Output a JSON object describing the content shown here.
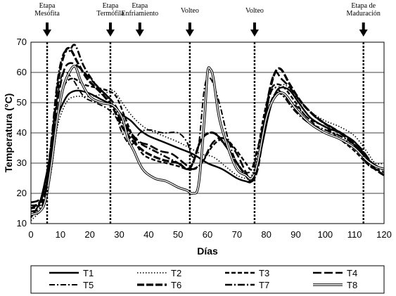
{
  "chart_data": {
    "type": "line",
    "xlabel": "Días",
    "ylabel": "Temperatura (°C)",
    "xlim": [
      0,
      120
    ],
    "ylim": [
      10,
      70
    ],
    "x_ticks": [
      0,
      10,
      20,
      30,
      40,
      50,
      60,
      70,
      80,
      90,
      100,
      110,
      120
    ],
    "y_ticks": [
      10,
      20,
      30,
      40,
      50,
      60,
      70
    ],
    "y_tick_labels": [
      "10",
      "20",
      "30",
      "40",
      "50",
      "60",
      "70"
    ],
    "gridlines": "horizontal",
    "legend_position": "bottom",
    "stage_markers": [
      {
        "x": 5.5,
        "lines": [
          "Etapa",
          "Mesófita"
        ],
        "arrow": true,
        "divider": true
      },
      {
        "x": 27,
        "lines": [
          "Etapa",
          "Termófila"
        ],
        "arrow": true,
        "divider": true
      },
      {
        "x": 37,
        "lines": [
          "Etapa",
          "Enfriamiento"
        ],
        "arrow": true,
        "divider": false
      },
      {
        "x": 54,
        "lines": [
          "Volteo"
        ],
        "arrow": true,
        "divider": true
      },
      {
        "x": 76,
        "lines": [
          "Volteo"
        ],
        "arrow": true,
        "divider": true
      },
      {
        "x": 113,
        "lines": [
          "Etapa de",
          "Maduración"
        ],
        "arrow": true,
        "divider": true
      }
    ],
    "series": [
      {
        "name": "T1",
        "style": "solid",
        "x": [
          0,
          3,
          5,
          7,
          9,
          11,
          13,
          16,
          20,
          24,
          28,
          31,
          34,
          37,
          40,
          45,
          50,
          55,
          60,
          65,
          70,
          73,
          75,
          77,
          79,
          81,
          83,
          85,
          88,
          91,
          95,
          100,
          105,
          110,
          114,
          117,
          120
        ],
        "y": [
          12,
          17,
          25,
          35,
          45,
          50,
          53,
          54,
          53,
          51,
          49,
          46,
          44,
          41,
          39,
          37,
          35,
          33,
          30,
          28,
          25,
          24,
          24,
          29,
          38,
          47,
          53,
          55,
          54,
          50,
          45,
          42,
          40,
          37,
          32,
          29,
          28
        ]
      },
      {
        "name": "T2",
        "style": "dotted",
        "x": [
          0,
          3,
          5,
          7,
          9,
          12,
          15,
          20,
          25,
          28,
          31,
          34,
          37,
          40,
          45,
          50,
          54,
          58,
          62,
          66,
          70,
          73,
          75,
          77,
          80,
          83,
          86,
          90,
          95,
          100,
          105,
          110,
          114,
          117,
          120
        ],
        "y": [
          11,
          14,
          18,
          28,
          42,
          50,
          52,
          52,
          53,
          54,
          50,
          46,
          43,
          41,
          39,
          37,
          35,
          33,
          32,
          29,
          26,
          25,
          26,
          32,
          44,
          53,
          56,
          52,
          47,
          44,
          42,
          39,
          34,
          30,
          30
        ]
      },
      {
        "name": "T3",
        "style": "dashed",
        "x": [
          0,
          3,
          5,
          7,
          9,
          11,
          14,
          18,
          22,
          26,
          29,
          32,
          35,
          38,
          42,
          46,
          50,
          53,
          55,
          58,
          62,
          66,
          70,
          73,
          75,
          77,
          79,
          81,
          83,
          86,
          90,
          94,
          100,
          105,
          110,
          114,
          117,
          120
        ],
        "y": [
          15,
          16,
          20,
          32,
          45,
          55,
          58,
          56,
          55,
          54,
          52,
          45,
          38,
          33,
          31,
          30,
          29,
          28,
          28,
          30,
          36,
          38,
          34,
          30,
          28,
          34,
          45,
          53,
          56,
          55,
          50,
          45,
          42,
          38,
          34,
          30,
          28,
          27
        ]
      },
      {
        "name": "T4",
        "style": "longdash",
        "x": [
          0,
          3,
          5,
          7,
          9,
          11,
          13,
          16,
          20,
          24,
          28,
          31,
          34,
          37,
          40,
          44,
          48,
          52,
          55,
          58,
          62,
          66,
          70,
          73,
          75,
          77,
          79,
          81,
          83,
          85,
          88,
          92,
          97,
          102,
          107,
          112,
          116,
          120
        ],
        "y": [
          17,
          18,
          22,
          35,
          50,
          60,
          63,
          62,
          58,
          54,
          50,
          45,
          40,
          37,
          36,
          34,
          33,
          30,
          28,
          30,
          37,
          38,
          33,
          27,
          24,
          30,
          42,
          54,
          60,
          58,
          55,
          50,
          45,
          42,
          39,
          35,
          30,
          28
        ]
      },
      {
        "name": "T5",
        "style": "dashdot",
        "x": [
          0,
          3,
          5,
          7,
          9,
          11,
          14,
          18,
          22,
          26,
          29,
          31,
          34,
          37,
          40,
          45,
          50,
          53,
          55,
          57,
          59,
          61,
          64,
          67,
          70,
          73,
          75,
          77,
          80,
          83,
          86,
          90,
          95,
          100,
          105,
          110,
          114,
          117,
          120
        ],
        "y": [
          16,
          17,
          23,
          38,
          52,
          60,
          58,
          52,
          50,
          48,
          45,
          40,
          36,
          40,
          41,
          40,
          40,
          37,
          32,
          36,
          55,
          58,
          50,
          38,
          30,
          27,
          28,
          35,
          46,
          53,
          52,
          49,
          44,
          40,
          38,
          36,
          30,
          28,
          28
        ]
      },
      {
        "name": "T6",
        "style": "heavydash",
        "x": [
          0,
          3,
          5,
          7,
          9,
          11,
          13,
          16,
          19,
          22,
          25,
          28,
          31,
          34,
          37,
          40,
          45,
          50,
          53,
          55,
          58,
          62,
          66,
          70,
          73,
          75,
          77,
          79,
          81,
          83,
          85,
          88,
          92,
          96,
          100,
          105,
          110,
          114,
          117,
          120
        ],
        "y": [
          15,
          17,
          20,
          35,
          55,
          65,
          68,
          63,
          58,
          55,
          52,
          48,
          42,
          38,
          35,
          33,
          31,
          30,
          28,
          30,
          38,
          40,
          36,
          30,
          26,
          24,
          28,
          40,
          53,
          60,
          61,
          56,
          50,
          46,
          43,
          40,
          36,
          31,
          28,
          26
        ]
      },
      {
        "name": "T7",
        "style": "dashdotbold",
        "x": [
          0,
          3,
          5,
          7,
          9,
          11,
          13,
          15,
          18,
          22,
          26,
          29,
          32,
          35,
          38,
          42,
          46,
          50,
          53,
          55,
          58,
          62,
          66,
          70,
          73,
          75,
          77,
          79,
          81,
          83,
          86,
          90,
          95,
          100,
          105,
          110,
          114,
          117,
          120
        ],
        "y": [
          14,
          15,
          20,
          38,
          57,
          66,
          67,
          69,
          62,
          56,
          52,
          47,
          42,
          38,
          36,
          34,
          32,
          30,
          28,
          30,
          38,
          40,
          36,
          30,
          26,
          24,
          30,
          42,
          52,
          55,
          52,
          47,
          43,
          41,
          39,
          36,
          31,
          28,
          28
        ]
      },
      {
        "name": "T8",
        "style": "doubleline",
        "x": [
          0,
          3,
          5,
          7,
          9,
          11,
          13,
          15,
          17,
          20,
          24,
          28,
          31,
          33,
          35,
          38,
          42,
          46,
          50,
          53,
          55,
          57,
          59,
          60,
          61,
          62,
          64,
          67,
          70,
          73,
          75,
          77,
          80,
          83,
          86,
          90,
          95,
          100,
          105,
          110,
          114,
          117,
          120
        ],
        "y": [
          13,
          14,
          18,
          30,
          45,
          55,
          60,
          62,
          57,
          52,
          50,
          49,
          45,
          38,
          34,
          28,
          25,
          24,
          22,
          21,
          20,
          23,
          45,
          60,
          61,
          58,
          45,
          35,
          28,
          26,
          25,
          30,
          45,
          52,
          53,
          48,
          43,
          40,
          38,
          35,
          31,
          29,
          28
        ]
      }
    ]
  }
}
